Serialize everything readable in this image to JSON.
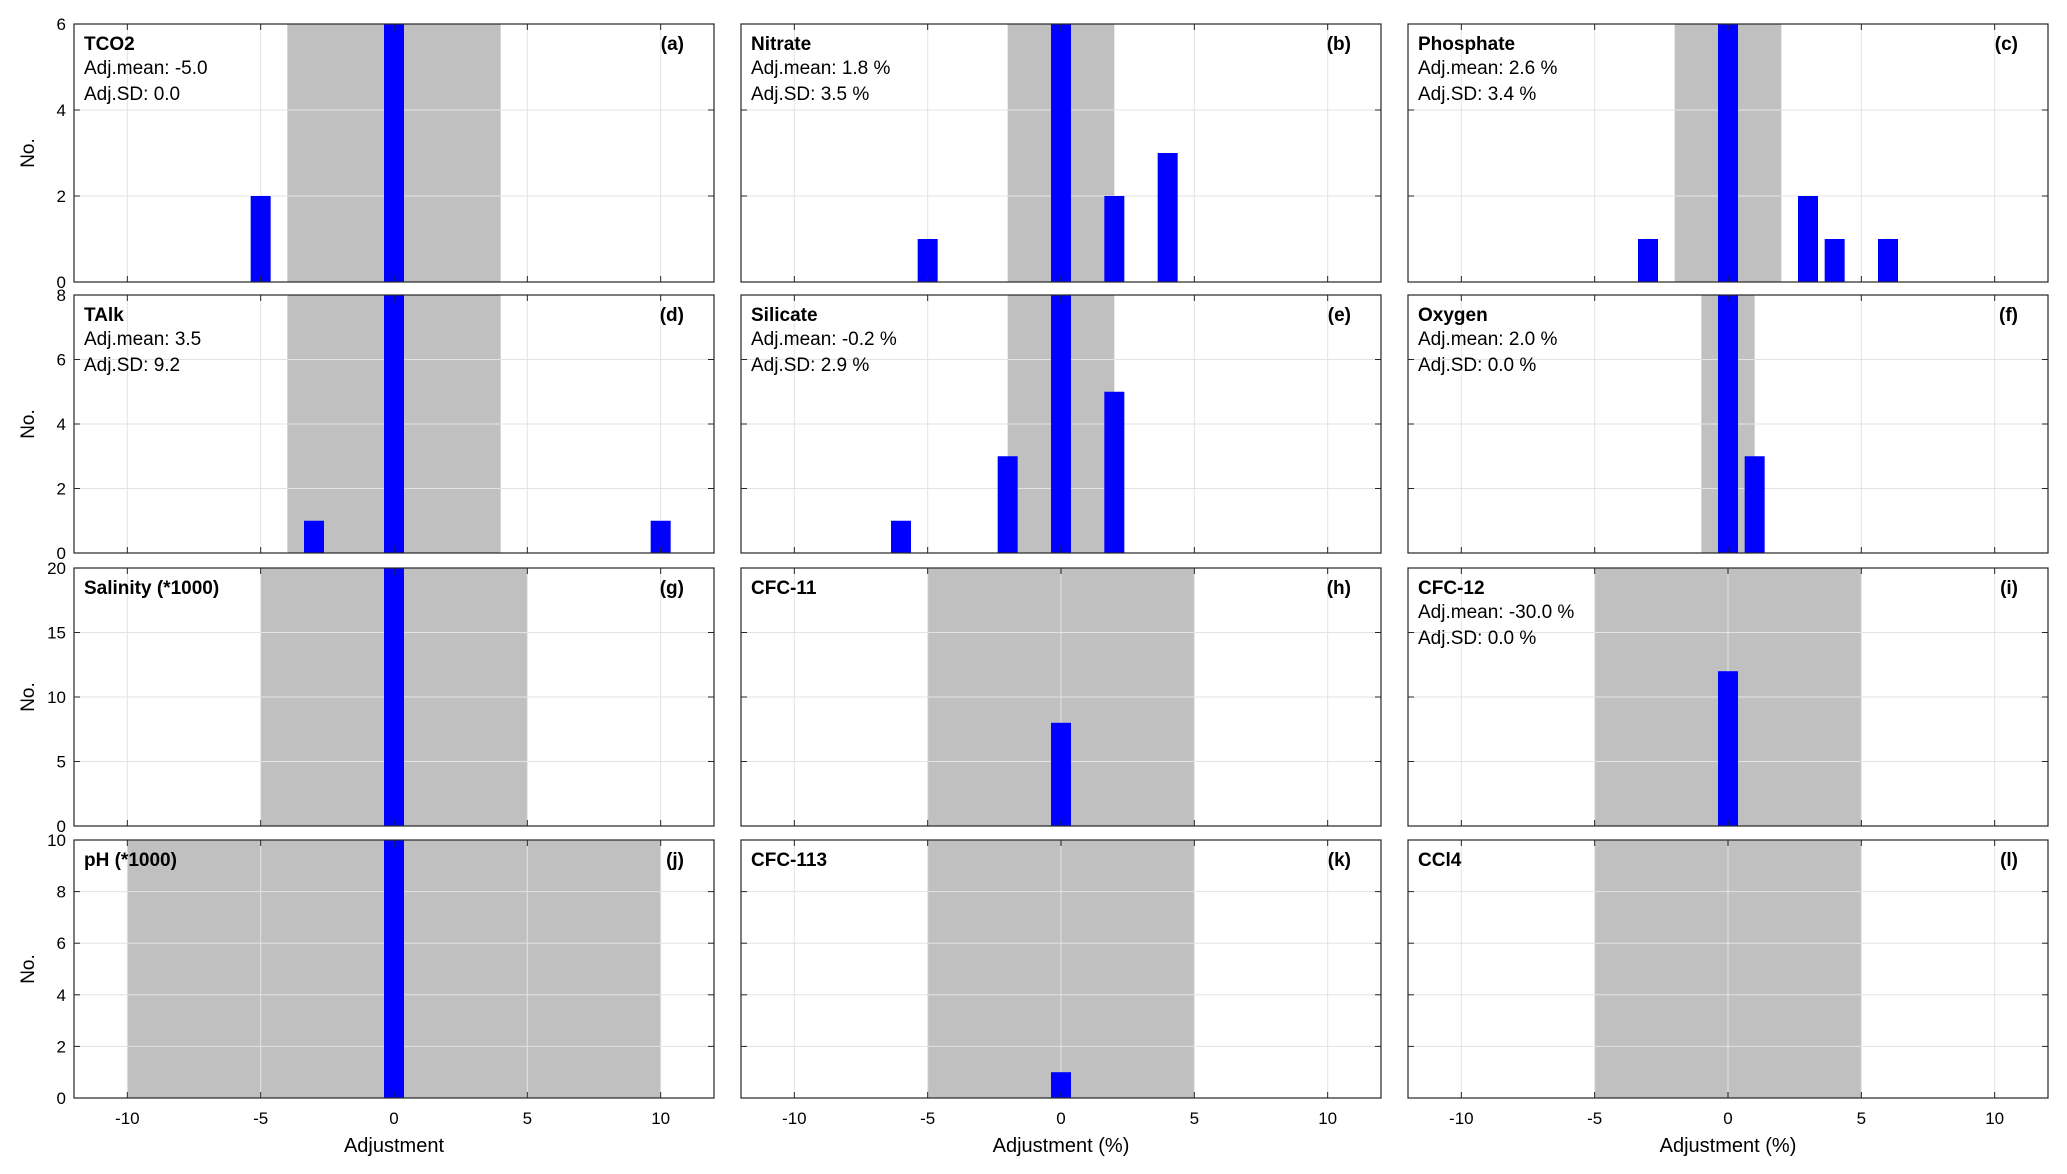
{
  "figure": {
    "xlabels": [
      "Adjustment",
      "Adjustment (%)",
      "Adjustment (%)"
    ],
    "ylabel": "No.",
    "x_ticks": [
      -10,
      -5,
      0,
      5,
      10
    ],
    "row_yticks": [
      [
        0,
        2,
        4,
        6
      ],
      [
        0,
        2,
        4,
        6,
        8
      ],
      [
        0,
        5,
        10,
        15,
        20
      ],
      [
        0,
        2,
        4,
        6,
        8,
        10
      ]
    ]
  },
  "chart_data": [
    {
      "type": "bar",
      "panel": "(a)",
      "title": "TCO2",
      "stats": [
        "Adj.mean: -5.0",
        "Adj.SD: 0.0"
      ],
      "xlim": [
        -12,
        12
      ],
      "ylim": [
        0,
        6
      ],
      "band": [
        -4,
        4
      ],
      "bars": [
        {
          "x": -5,
          "y": 2
        },
        {
          "x": 0,
          "y": 6
        }
      ],
      "xlabel": "",
      "ylabel": "No."
    },
    {
      "type": "bar",
      "panel": "(b)",
      "title": "Nitrate",
      "stats": [
        "Adj.mean: 1.8 %",
        "Adj.SD: 3.5 %"
      ],
      "xlim": [
        -12,
        12
      ],
      "ylim": [
        0,
        6
      ],
      "band": [
        -2,
        2
      ],
      "bars": [
        {
          "x": -5,
          "y": 1
        },
        {
          "x": 0,
          "y": 6
        },
        {
          "x": 2,
          "y": 2
        },
        {
          "x": 4,
          "y": 3
        }
      ],
      "xlabel": "",
      "ylabel": ""
    },
    {
      "type": "bar",
      "panel": "(c)",
      "title": "Phosphate",
      "stats": [
        "Adj.mean: 2.6 %",
        "Adj.SD: 3.4 %"
      ],
      "xlim": [
        -12,
        12
      ],
      "ylim": [
        0,
        6
      ],
      "band": [
        -2,
        2
      ],
      "bars": [
        {
          "x": -3,
          "y": 1
        },
        {
          "x": 0,
          "y": 6
        },
        {
          "x": 3,
          "y": 2
        },
        {
          "x": 4,
          "y": 1
        },
        {
          "x": 6,
          "y": 1
        }
      ],
      "xlabel": "",
      "ylabel": ""
    },
    {
      "type": "bar",
      "panel": "(d)",
      "title": "TAlk",
      "stats": [
        "Adj.mean: 3.5",
        "Adj.SD: 9.2"
      ],
      "xlim": [
        -12,
        12
      ],
      "ylim": [
        0,
        8
      ],
      "band": [
        -4,
        4
      ],
      "bars": [
        {
          "x": -3,
          "y": 1
        },
        {
          "x": 0,
          "y": 8
        },
        {
          "x": 10,
          "y": 1
        }
      ],
      "xlabel": "",
      "ylabel": "No."
    },
    {
      "type": "bar",
      "panel": "(e)",
      "title": "Silicate",
      "stats": [
        "Adj.mean: -0.2 %",
        "Adj.SD: 2.9 %"
      ],
      "xlim": [
        -12,
        12
      ],
      "ylim": [
        0,
        8
      ],
      "band": [
        -2,
        2
      ],
      "bars": [
        {
          "x": -6,
          "y": 1
        },
        {
          "x": -2,
          "y": 3
        },
        {
          "x": 0,
          "y": 8
        },
        {
          "x": 2,
          "y": 5
        }
      ],
      "xlabel": "",
      "ylabel": ""
    },
    {
      "type": "bar",
      "panel": "(f)",
      "title": "Oxygen",
      "stats": [
        "Adj.mean: 2.0 %",
        "Adj.SD: 0.0 %"
      ],
      "xlim": [
        -12,
        12
      ],
      "ylim": [
        0,
        8
      ],
      "band": [
        -1,
        1
      ],
      "bars": [
        {
          "x": 0,
          "y": 8
        },
        {
          "x": 1,
          "y": 3
        }
      ],
      "xlabel": "",
      "ylabel": ""
    },
    {
      "type": "bar",
      "panel": "(g)",
      "title": "Salinity (*1000)",
      "stats": [],
      "xlim": [
        -12,
        12
      ],
      "ylim": [
        0,
        20
      ],
      "band": [
        -5,
        5
      ],
      "bars": [
        {
          "x": 0,
          "y": 20
        }
      ],
      "xlabel": "",
      "ylabel": "No."
    },
    {
      "type": "bar",
      "panel": "(h)",
      "title": "CFC-11",
      "stats": [],
      "xlim": [
        -12,
        12
      ],
      "ylim": [
        0,
        20
      ],
      "band": [
        -5,
        5
      ],
      "bars": [
        {
          "x": 0,
          "y": 8
        }
      ],
      "xlabel": "",
      "ylabel": ""
    },
    {
      "type": "bar",
      "panel": "(i)",
      "title": "CFC-12",
      "stats": [
        "Adj.mean: -30.0 %",
        "Adj.SD: 0.0 %"
      ],
      "xlim": [
        -12,
        12
      ],
      "ylim": [
        0,
        20
      ],
      "band": [
        -5,
        5
      ],
      "bars": [
        {
          "x": 0,
          "y": 12
        }
      ],
      "xlabel": "",
      "ylabel": ""
    },
    {
      "type": "bar",
      "panel": "(j)",
      "title": "pH (*1000)",
      "stats": [],
      "xlim": [
        -12,
        12
      ],
      "ylim": [
        0,
        10
      ],
      "band": [
        -10,
        10
      ],
      "bars": [
        {
          "x": 0,
          "y": 10
        }
      ],
      "xlabel": "Adjustment",
      "ylabel": "No."
    },
    {
      "type": "bar",
      "panel": "(k)",
      "title": "CFC-113",
      "stats": [],
      "xlim": [
        -12,
        12
      ],
      "ylim": [
        0,
        10
      ],
      "band": [
        -5,
        5
      ],
      "bars": [
        {
          "x": 0,
          "y": 1
        }
      ],
      "xlabel": "Adjustment (%)",
      "ylabel": ""
    },
    {
      "type": "bar",
      "panel": "(l)",
      "title": "CCl4",
      "stats": [],
      "xlim": [
        -12,
        12
      ],
      "ylim": [
        0,
        10
      ],
      "band": [
        -5,
        5
      ],
      "bars": [],
      "xlabel": "Adjustment (%)",
      "ylabel": ""
    }
  ],
  "colors": {
    "bar": "#0000ff",
    "band": "#c0c0c0",
    "grid": "#e3e3e3",
    "axis": "#262626",
    "text": "#000000"
  }
}
